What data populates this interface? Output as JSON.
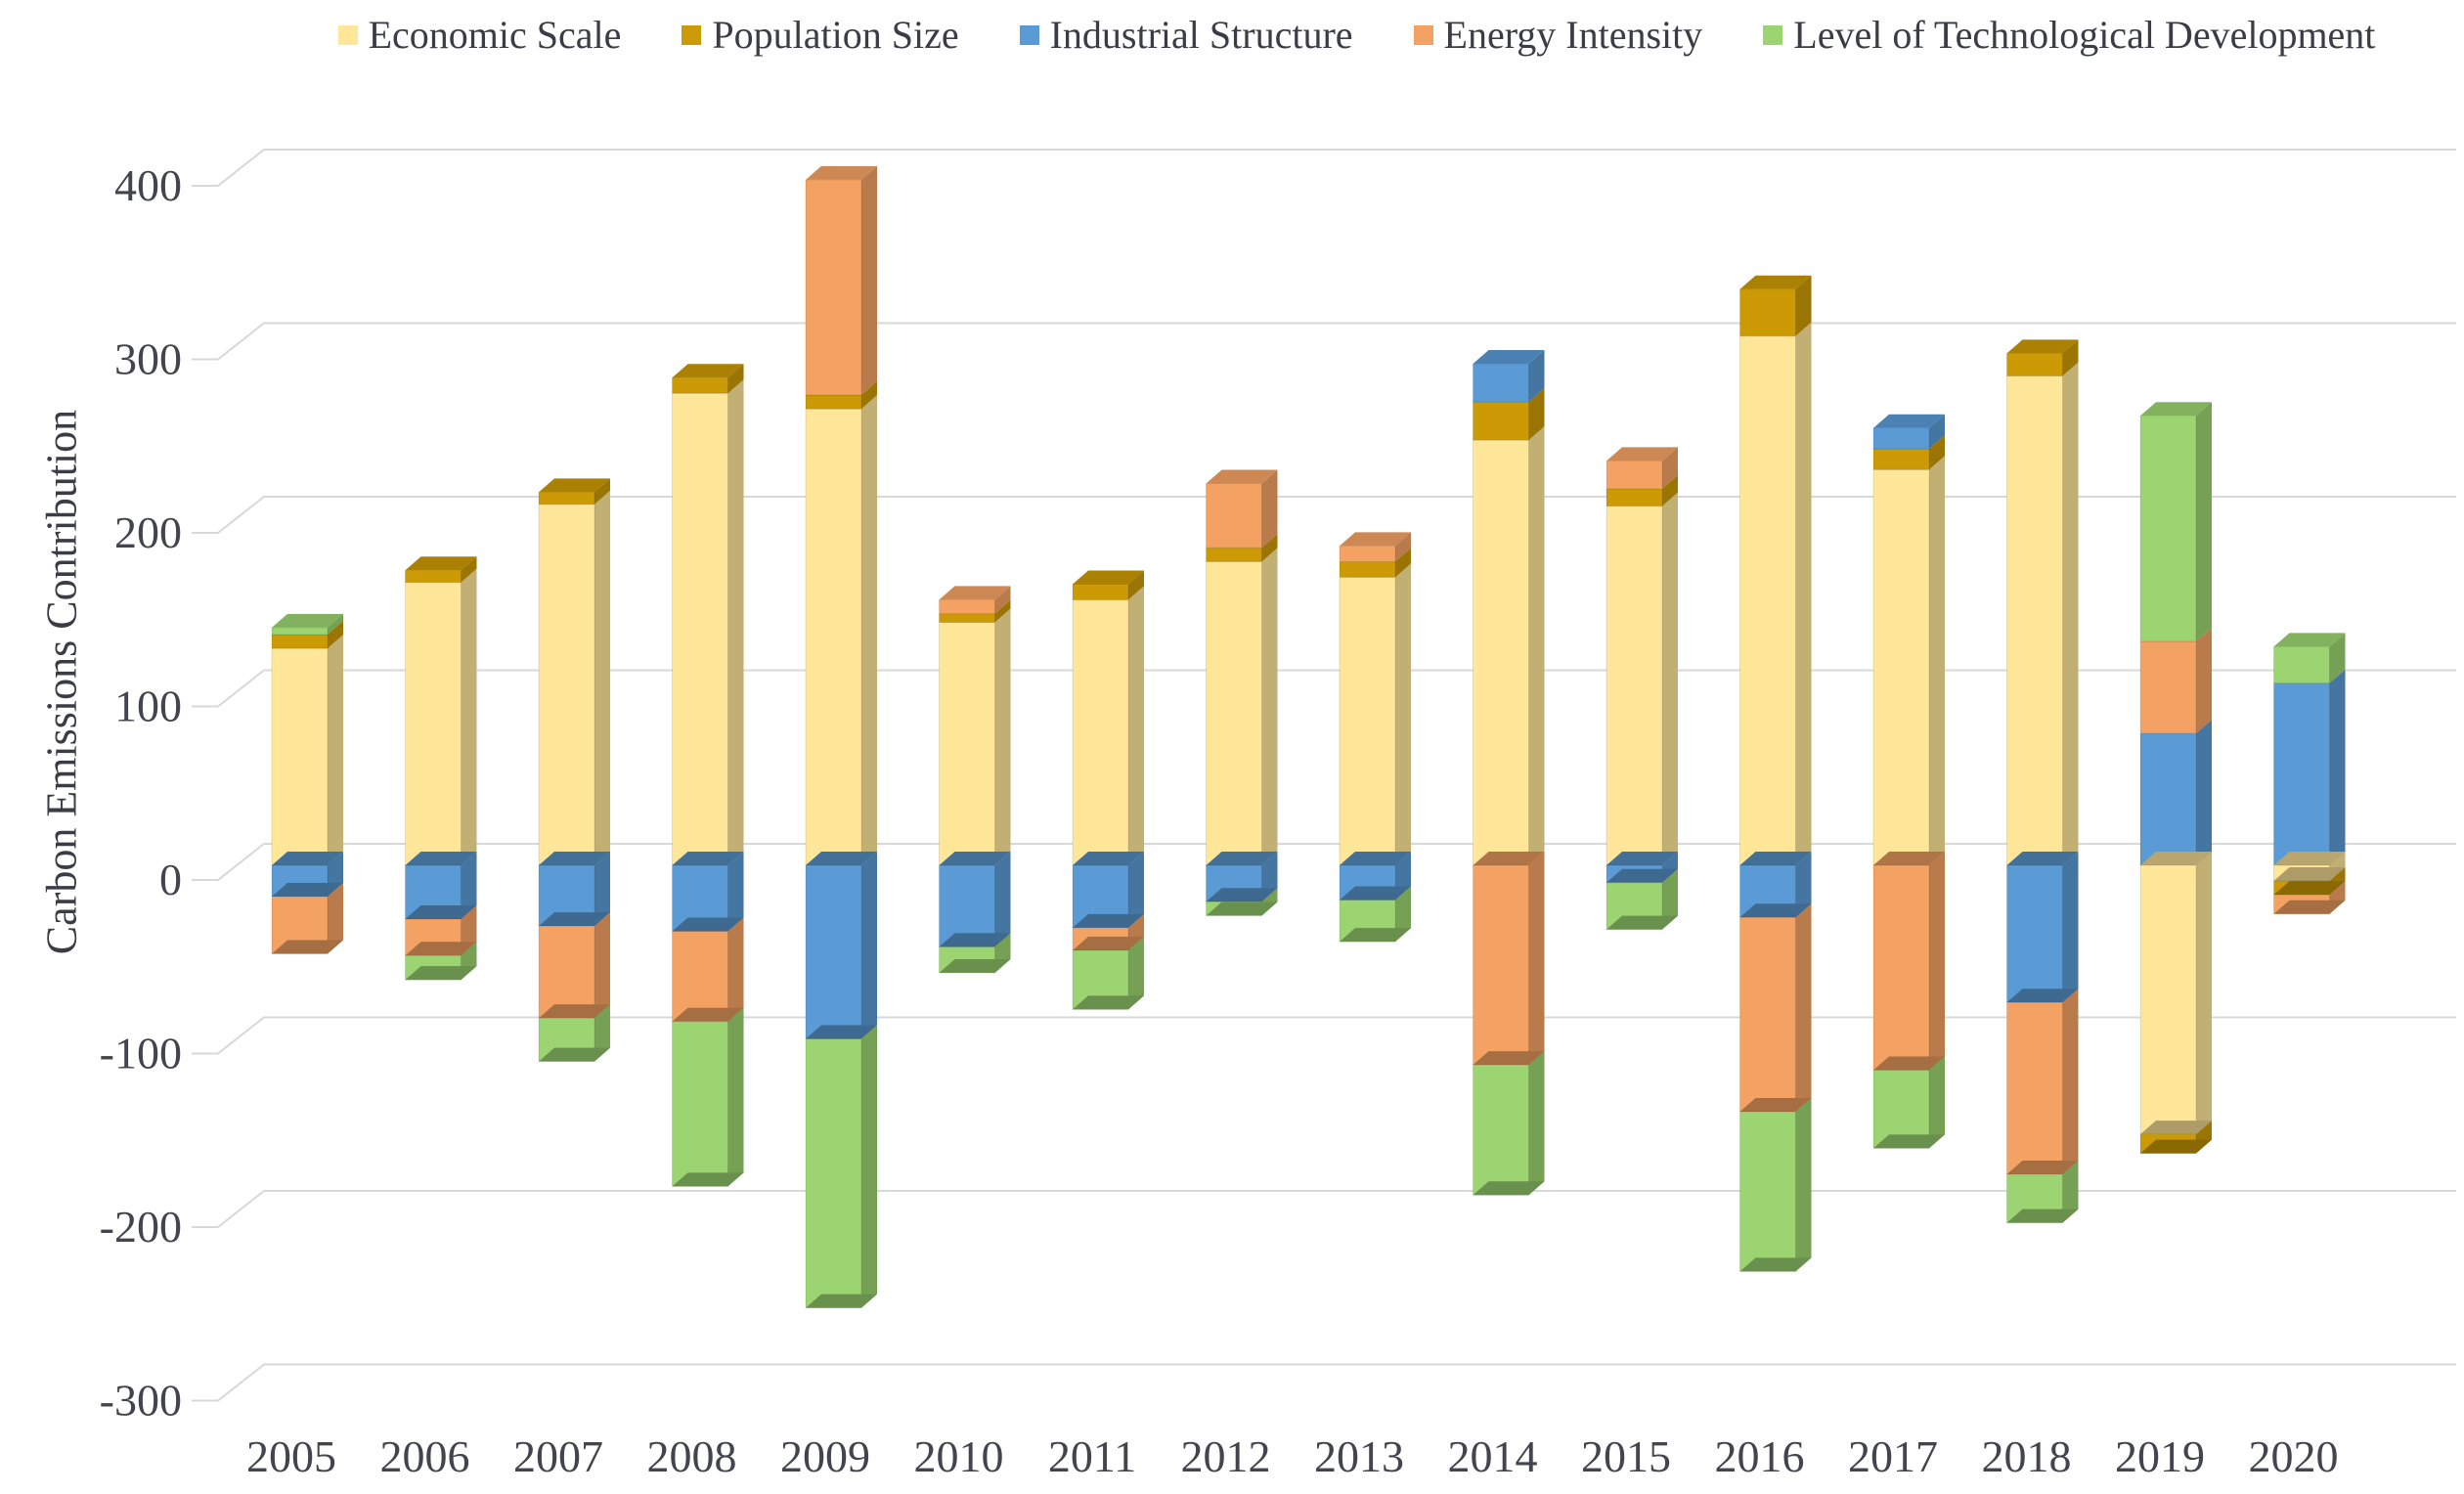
{
  "chart_data": {
    "type": "bar",
    "variant": "stacked-pseudo-3d",
    "title": "",
    "ylabel": "Carbon Emissions Contribution",
    "xlabel": "",
    "ylim": [
      -300,
      400
    ],
    "ytick_step": 100,
    "grid": true,
    "legend_position": "top",
    "y_axis_ticks": [
      "400",
      "300",
      "200",
      "100",
      "0",
      "-100",
      "-200",
      "-300"
    ],
    "categories": [
      "2005",
      "2006",
      "2007",
      "2008",
      "2009",
      "2010",
      "2011",
      "2012",
      "2013",
      "2014",
      "2015",
      "2016",
      "2017",
      "2018",
      "2019",
      "2020"
    ],
    "series": [
      {
        "name": "Economic Scale",
        "color": "#FFE699",
        "values": [
          125,
          163,
          208,
          272,
          263,
          140,
          153,
          175,
          166,
          245,
          207,
          305,
          228,
          282,
          -155,
          -9
        ]
      },
      {
        "name": "Population Size",
        "color": "#CB9A05",
        "values": [
          8,
          7,
          7,
          9,
          8,
          5,
          9,
          8,
          9,
          22,
          10,
          27,
          12,
          13,
          -11,
          -8
        ]
      },
      {
        "name": "Industrial Structure",
        "color": "#5B9BD5",
        "values": [
          -18,
          -31,
          -35,
          -38,
          -100,
          -47,
          -36,
          -21,
          -20,
          22,
          -10,
          -30,
          12,
          -79,
          76,
          105
        ]
      },
      {
        "name": "Energy Intensity",
        "color": "#F4A263",
        "values": [
          -33,
          -21,
          -53,
          -52,
          124,
          8,
          -13,
          37,
          9,
          -115,
          16,
          -112,
          -118,
          -99,
          53,
          -11
        ]
      },
      {
        "name": "Level of Technological Development",
        "color": "#9BD470",
        "values": [
          4,
          -14,
          -25,
          -95,
          -155,
          -15,
          -34,
          -8,
          -24,
          -75,
          -27,
          -92,
          -45,
          -28,
          130,
          21
        ]
      }
    ],
    "colors": {
      "gridline": "#D8D8D8",
      "tick_text": "#43444d",
      "label_text": "#3b3c45"
    }
  }
}
